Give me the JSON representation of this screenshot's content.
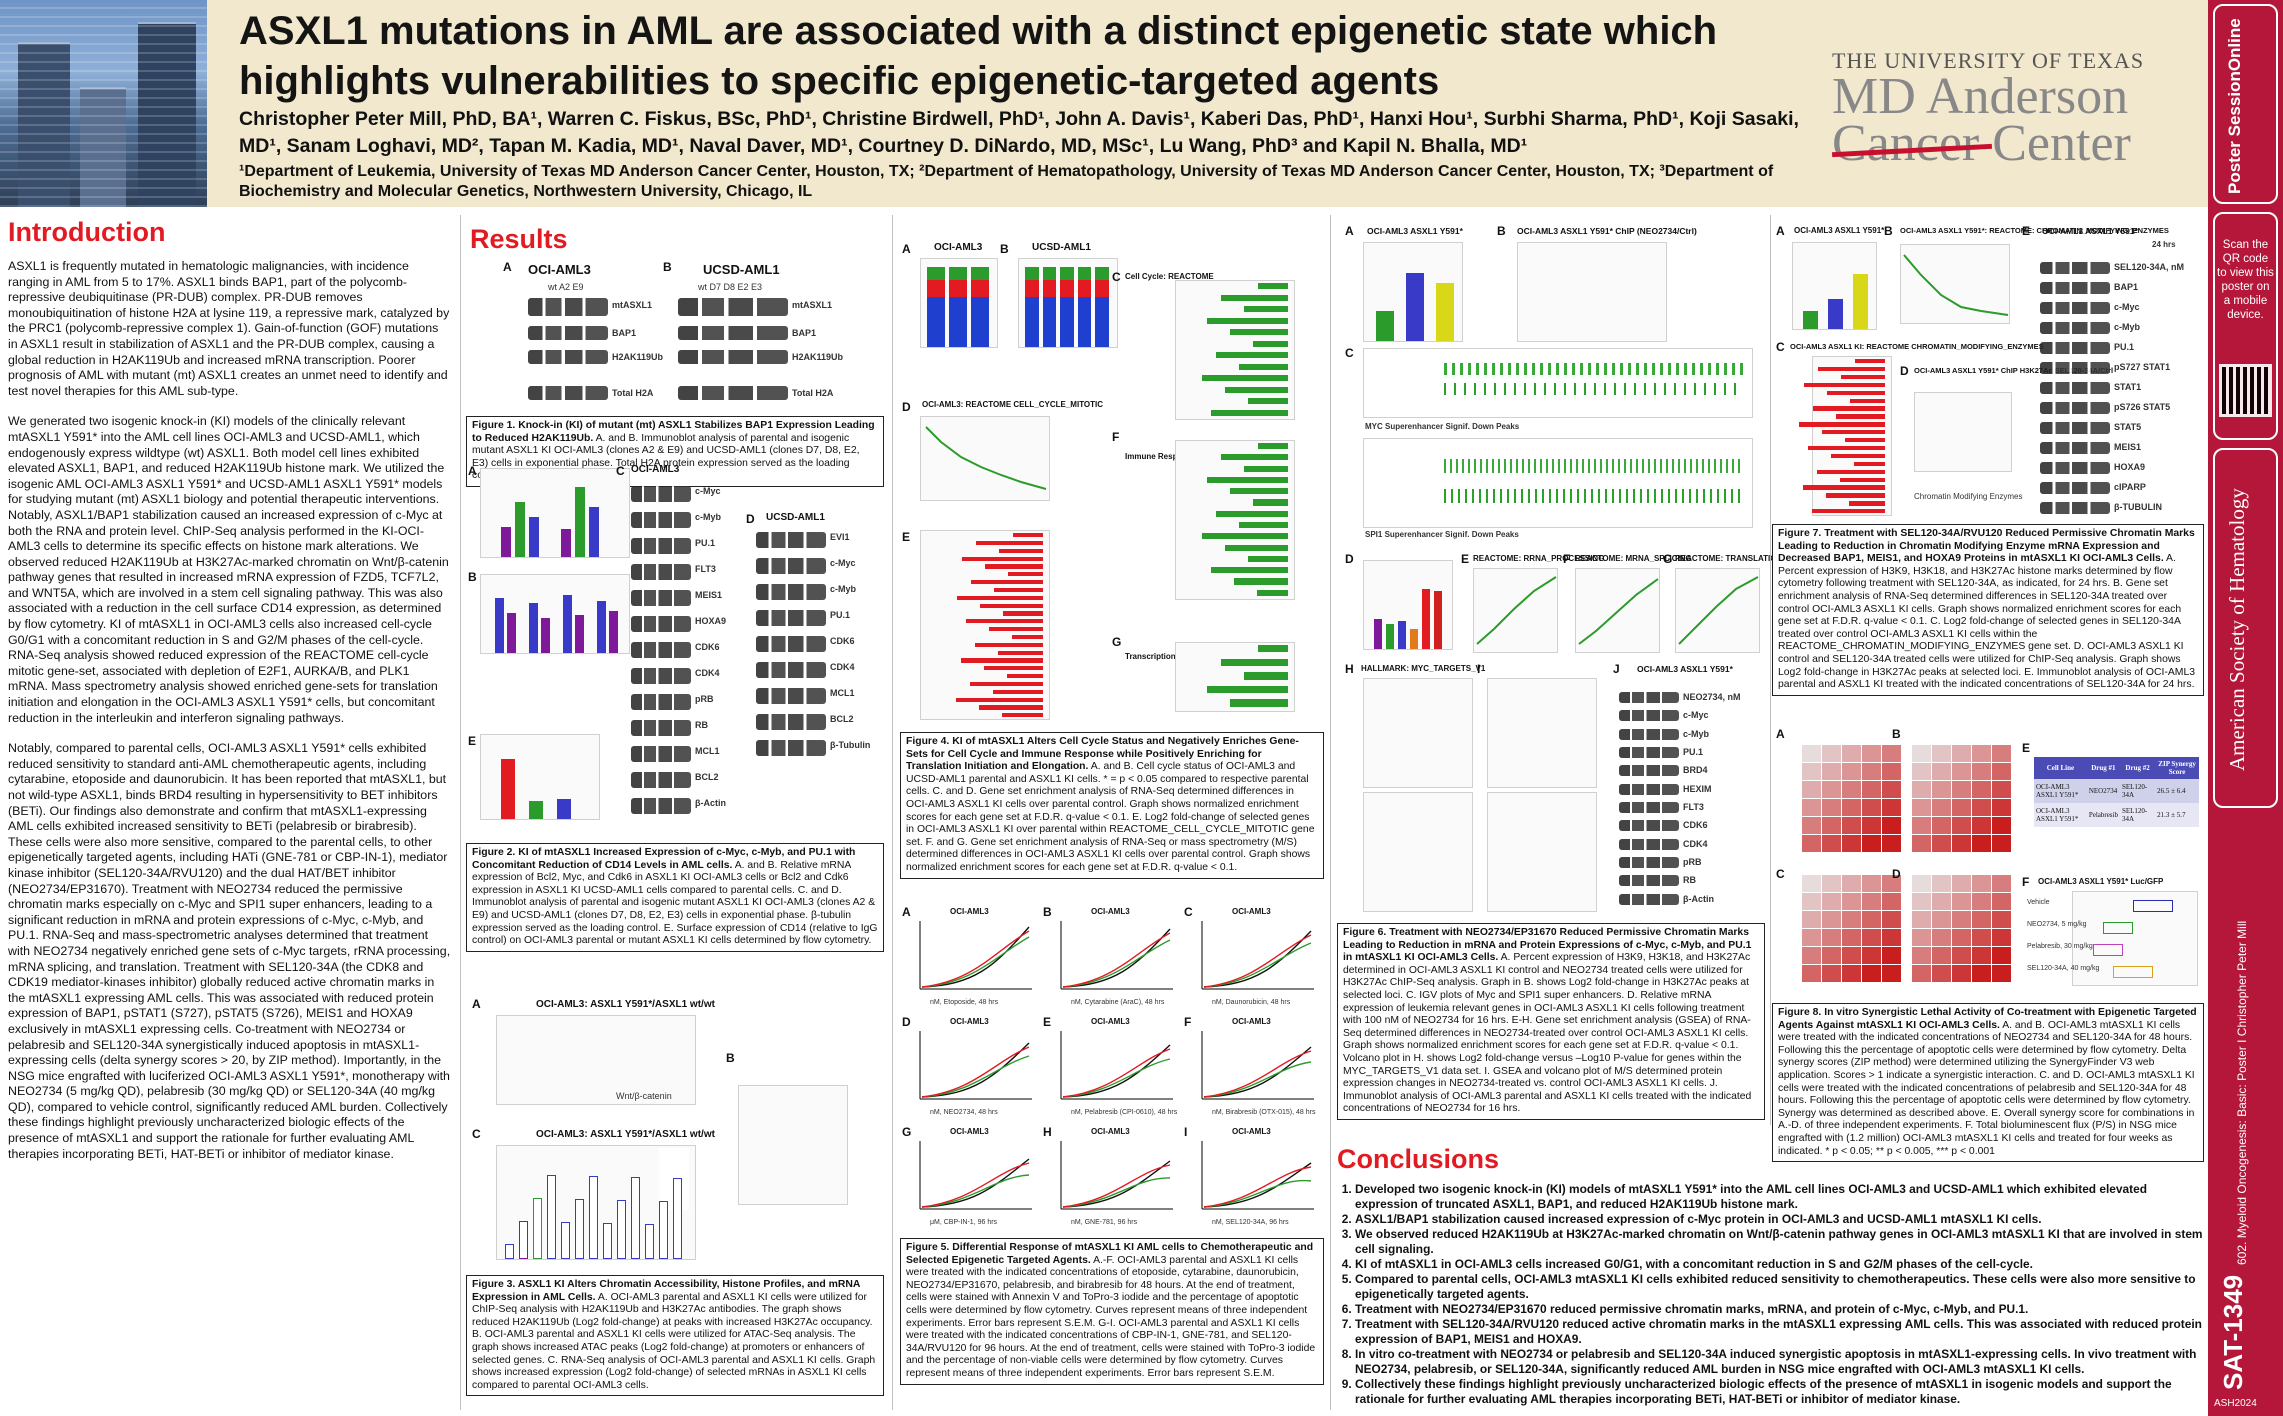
{
  "header": {
    "title": "ASXL1 mutations in AML are associated with a distinct epigenetic state which highlights vulnerabilities to specific epigenetic-targeted agents",
    "authors": "Christopher Peter Mill, PhD, BA¹, Warren C. Fiskus, BSc, PhD¹, Christine Birdwell, PhD¹, John A. Davis¹, Kaberi Das, PhD¹, Hanxi Hou¹, Surbhi Sharma, PhD¹, Koji Sasaki, MD¹, Sanam Loghavi, MD², Tapan M. Kadia, MD¹, Naval Daver, MD¹, Courtney D. DiNardo, MD, MSc¹, Lu Wang, PhD³ and Kapil N. Bhalla, MD¹",
    "affiliations": "¹Department of Leukemia, University of Texas MD Anderson Cancer Center, Houston, TX; ²Department of Hematopathology, University of Texas MD Anderson Cancer Center, Houston, TX; ³Department of Biochemistry and Molecular Genetics, Northwestern University, Chicago, IL",
    "logo_university": "THE UNIVERSITY OF TEXAS",
    "logo_line1": "MD Anderson",
    "logo_line2": "Cancer Center"
  },
  "sidebar": {
    "poster_session": "Poster SessionOnline",
    "qr_note": "Scan the QR code to view this poster on a mobile device.",
    "society": "American Society of Hematology",
    "session": "602. Myeloid Oncogenesis: Basic: Poster I   Christopher Peter Mill",
    "abstract_id": "SAT-1349",
    "code": "ASH2024"
  },
  "introduction": {
    "heading": "Introduction",
    "paragraphs": [
      "ASXL1 is frequently mutated in hematologic malignancies, with incidence ranging in AML from 5 to 17%. ASXL1 binds BAP1, part of the polycomb-repressive deubiquitinase (PR-DUB) complex. PR-DUB removes monoubiquitination of histone H2A at lysine 119, a repressive mark, catalyzed by the PRC1 (polycomb-repressive complex 1). Gain-of-function (GOF) mutations in ASXL1 result in stabilization of ASXL1 and the PR-DUB complex, causing a global reduction in H2AK119Ub and increased mRNA transcription. Poorer prognosis of AML with mutant (mt) ASXL1 creates an unmet need to identify and test novel therapies for this AML sub-type.",
      "We generated two isogenic knock-in (KI) models of the clinically relevant mtASXL1 Y591* into the AML cell lines OCI-AML3 and UCSD-AML1, which endogenously express wildtype (wt) ASXL1. Both model cell lines exhibited elevated ASXL1, BAP1, and reduced H2AK119Ub histone mark. We utilized the isogenic AML OCI-AML3 ASXL1 Y591* and UCSD-AML1 ASXL1 Y591* models for studying mutant (mt) ASXL1 biology and potential therapeutic interventions. Notably, ASXL1/BAP1 stabilization caused an increased expression of c-Myc at both the RNA and protein level. ChIP-Seq analysis performed in the KI-OCI-AML3 cells to determine its specific effects on histone mark alterations. We observed reduced H2AK119Ub at H3K27Ac-marked chromatin on Wnt/β-catenin pathway genes that resulted in increased mRNA expression of FZD5, TCF7L2, and WNT5A, which are involved in a stem cell signaling pathway. This was also associated with a reduction in the cell surface CD14 expression, as determined by flow cytometry. KI of mtASXL1 in OCI-AML3 cells also increased cell-cycle G0/G1 with a concomitant reduction in S and G2/M phases of the cell-cycle. RNA-Seq analysis showed reduced expression of the REACTOME cell-cycle mitotic gene-set, associated with depletion of E2F1, AURKA/B, and PLK1 mRNA. Mass spectrometry analysis showed enriched gene-sets for translation initiation and elongation in the OCI-AML3 ASXL1 Y591* cells, but concomitant reduction in the interleukin and interferon signaling pathways.",
      "Notably, compared to parental cells, OCI-AML3 ASXL1 Y591* cells exhibited reduced sensitivity to standard anti-AML chemotherapeutic agents, including cytarabine, etoposide and daunorubicin. It has been reported that mtASXL1, but not wild-type ASXL1, binds BRD4 resulting in hypersensitivity to BET inhibitors (BETi). Our findings also demonstrate and confirm that mtASXL1-expressing AML cells exhibited increased sensitivity to BETi (pelabresib or birabresib). These cells were also more sensitive, compared to the parental cells, to other epigenetically targeted agents, including HATi (GNE-781 or CBP-IN-1), mediator kinase inhibitor (SEL120-34A/RVU120) and the dual HAT/BET inhibitor (NEO2734/EP31670). Treatment with NEO2734 reduced the permissive chromatin marks especially on c-Myc and SPI1 super enhancers, leading to a significant reduction in mRNA and protein expressions of c-Myc, c-Myb, and PU.1. RNA-Seq and mass-spectrometric analyses determined that treatment with NEO2734 negatively enriched gene sets of c-Myc targets, rRNA processing, mRNA splicing, and translation. Treatment with SEL120-34A (the CDK8 and CDK19 mediator-kinases inhibitor) globally reduced active chromatin marks in the mtASXL1 expressing AML cells. This was associated with reduced protein expression of BAP1, pSTAT1 (S727), pSTAT5 (S726), MEIS1 and HOXA9 exclusively in mtASXL1 expressing cells. Co-treatment with NEO2734 or pelabresib and SEL120-34A synergistically induced apoptosis in mtASXL1-expressing cells (delta synergy scores > 20, by ZIP method). Importantly, in the NSG mice engrafted with luciferized OCI-AML3 ASXL1 Y591*, monotherapy with NEO2734 (5 mg/kg QD), pelabresib (30 mg/kg QD) or SEL120-34A (40 mg/kg QD), compared to vehicle control, significantly reduced AML burden. Collectively these findings highlight previously uncharacterized biologic effects of the presence of mtASXL1 and support the rationale for further evaluating AML therapies incorporating BETi, HAT-BETi or inhibitor of mediator kinase."
    ]
  },
  "results": {
    "heading": "Results",
    "fig1": {
      "panel_a": "A",
      "panel_b": "B",
      "cell_a": "OCI-AML3",
      "cell_b": "UCSD-AML1",
      "lanes_a": "wt  A2  E9",
      "lanes_b": "wt  D7  D8  E2  E3",
      "rows": [
        "mtASXL1",
        "BAP1",
        "H2AK119Ub",
        "Total H2A"
      ],
      "caption_title": "Figure 1. Knock-in (KI) of mutant (mt) ASXL1 Stabilizes BAP1 Expression Leading to Reduced H2AK119Ub.",
      "caption_body": " A. and B. Immunoblot analysis of parental and isogenic mutant ASXL1 KI OCI-AML3 (clones A2 & E9) and UCSD-AML1 (clones D7, D8, E2, E3) cells in exponential phase. Total H2A protein expression served as the loading control."
    },
    "fig2": {
      "rows_c": [
        "c-Myc",
        "c-Myb",
        "PU.1",
        "FLT3",
        "MEIS1",
        "HOXA9",
        "CDK6",
        "CDK4",
        "pRB",
        "RB",
        "MCL1",
        "BCL2",
        "β-Actin"
      ],
      "rows_d": [
        "EVI1",
        "c-Myc",
        "c-Myb",
        "PU.1",
        "CDK6",
        "CDK4",
        "MCL1",
        "BCL2",
        "β-Tubulin"
      ],
      "cell_c": "OCI-AML3",
      "cell_d": "UCSD-AML1",
      "caption_title": "Figure 2. KI of mtASXL1 Increased Expression of c-Myc, c-Myb, and PU.1 with Concomitant Reduction of CD14 Levels in AML cells.",
      "caption_body": " A. and B. Relative mRNA expression of Bcl2, Myc, and Cdk6 in ASXL1 KI OCI-AML3 cells or Bcl2 and Cdk6 expression in ASXL1 KI UCSD-AML1 cells compared to parental cells. C. and D. Immunoblot analysis of parental and isogenic mutant ASXL1 KI OCI-AML3 (clones A2 & E9) and UCSD-AML1 (clones D7, D8, E2, E3) cells in exponential phase. β-tubulin expression served as the loading control. E. Surface expression of CD14 (relative to IgG control) on OCI-AML3 parental or mutant ASXL1 KI cells determined by flow cytometry."
    },
    "fig3": {
      "title_a": "OCI-AML3: ASXL1 Y591*/ASXL1 wt/wt",
      "title_c": "OCI-AML3: ASXL1 Y591*/ASXL1 wt/wt",
      "label_wnt": "Wnt/β-catenin",
      "caption_title": "Figure 3. ASXL1 KI Alters Chromatin Accessibility, Histone Profiles, and mRNA Expression in AML Cells.",
      "caption_body": " A. OCI-AML3 parental and ASXL1 KI cells were utilized for ChIP-Seq analysis with H2AK119Ub and H3K27Ac antibodies. The graph shows reduced H2AK119Ub (Log2 fold-change) at peaks with increased H3K27Ac occupancy. B. OCI-AML3 parental and ASXL1 KI cells were utilized for ATAC-Seq analysis. The graph shows increased ATAC peaks (Log2 fold-change) at promoters or enhancers of selected genes. C. RNA-Seq analysis of OCI-AML3 parental and ASXL1 KI cells. Graph shows increased expression (Log2 fold-change) of selected mRNAs in ASXL1 KI cells compared to parental OCI-AML3 cells."
    },
    "fig4": {
      "title_a": "OCI-AML3",
      "title_b": "UCSD-AML1",
      "title_c": "Cell Cycle: REACTOME",
      "title_d": "OCI-AML3: REACTOME CELL_CYCLE_MITOTIC",
      "title_f": "Immune Response: REACTOME",
      "title_g": "Transcription/Translation: REACTOME",
      "caption_title": "Figure 4. KI of mtASXL1 Alters Cell Cycle Status and Negatively Enriches Gene-Sets for Cell Cycle and Immune Response while Positively Enriching for Translation Initiation and Elongation.",
      "caption_body": " A. and B. Cell cycle status of OCI-AML3 and UCSD-AML1 parental and ASXL1 KI cells. * = p < 0.05 compared to respective parental cells. C. and D. Gene set enrichment analysis of RNA-Seq determined differences in OCI-AML3 ASXL1 KI cells over parental control. Graph shows normalized enrichment scores for each gene set at F.D.R. q-value < 0.1. E. Log2 fold-change of selected genes in OCI-AML3 ASXL1 KI over parental within REACTOME_CELL_CYCLE_MITOTIC gene set. F. and G. Gene set enrichment analysis of RNA-Seq or mass spectrometry (M/S) determined differences in OCI-AML3 ASXL1 KI cells over parental control. Graph shows normalized enrichment scores for each gene set at F.D.R. q-value < 0.1."
    },
    "fig5": {
      "panel_titles": [
        "OCI-AML3",
        "OCI-AML3",
        "OCI-AML3",
        "OCI-AML3",
        "OCI-AML3",
        "OCI-AML3",
        "OCI-AML3",
        "OCI-AML3",
        "OCI-AML3"
      ],
      "x_labels": [
        "nM, Etoposide, 48 hrs",
        "nM, Cytarabine (AraC), 48 hrs",
        "nM, Daunorubicin, 48 hrs",
        "nM, NEO2734, 48 hrs",
        "nM, Pelabresib (CPI-0610), 48 hrs",
        "nM, Birabresib (OTX-015), 48 hrs",
        "μM, CBP-IN-1, 96 hrs",
        "nM, GNE-781, 96 hrs",
        "nM, SEL120-34A, 96 hrs"
      ],
      "caption_title": "Figure 5. Differential Response of mtASXL1 KI AML cells to Chemotherapeutic and Selected Epigenetic Targeted Agents.",
      "caption_body": " A.-F. OCI-AML3 parental and ASXL1 KI cells were treated with the indicated concentrations of etoposide, cytarabine, daunorubicin, NEO2734/EP31670, pelabresib, and birabresib for 48 hours. At the end of treatment, cells were stained with Annexin V and ToPro-3 iodide and the percentage of apoptotic cells were determined by flow cytometry. Curves represent means of three independent experiments. Error bars represent S.E.M. G-I. OCI-AML3 parental and ASXL1 KI cells were treated with the indicated concentrations of CBP-IN-1, GNE-781, and SEL120-34A/RVU120 for 96 hours. At the end of treatment, cells were stained with ToPro-3 iodide and the percentage of non-viable cells were determined by flow cytometry. Curves represent means of three independent experiments. Error bars represent S.E.M."
    },
    "fig6": {
      "title_a": "OCI-AML3 ASXL1 Y591*",
      "title_b": "OCI-AML3 ASXL1 Y591* ChIP (NEO2734/Ctrl)",
      "track_myc": "MYC Superenhancer Signif. Down Peaks",
      "track_spi1": "SPI1 Superenhancer Signif. Down Peaks",
      "title_e": "REACTOME: RRNA_PROCESSING",
      "title_f": "REACTOME: MRNA_SPLICING",
      "title_g": "REACTOME: TRANSLATION",
      "title_h": "HALLMARK: MYC_TARGETS_V1",
      "title_j": "OCI-AML3 ASXL1 Y591*",
      "rows_j": [
        "NEO2734, nM",
        "c-Myc",
        "c-Myb",
        "PU.1",
        "BRD4",
        "HEXIM",
        "FLT3",
        "CDK6",
        "CDK4",
        "pRB",
        "RB",
        "β-Actin"
      ],
      "caption_title": "Figure 6. Treatment with NEO2734/EP31670 Reduced Permissive Chromatin Marks Leading to Reduction in mRNA and Protein Expressions of c-Myc, c-Myb, and PU.1 in mtASXL1 KI OCI-AML3 Cells.",
      "caption_body": " A. Percent expression of H3K9, H3K18, and H3K27Ac determined in OCI-AML3 ASXL1 KI control and NEO2734 treated cells were utilized for H3K27Ac ChIP-Seq analysis. Graph in B. shows Log2 fold-change in H3K27Ac peaks at selected loci. C. IGV plots of Myc and SPI1 super enhancers. D. Relative mRNA expression of leukemia relevant genes in OCI-AML3 ASXL1 KI cells following treatment with 100 nM of NEO2734 for 16 hrs. E-H. Gene set enrichment analysis (GSEA) of RNA-Seq determined differences in NEO2734-treated over control OCI-AML3 ASXL1 KI cells. Graph shows normalized enrichment scores for each gene set at F.D.R. q-value < 0.1. Volcano plot in H. shows Log2 fold-change versus –Log10 P-value for genes within the MYC_TARGETS_V1 data set. I. GSEA and volcano plot of M/S determined protein expression changes in NEO2734-treated vs. control OCI-AML3 ASXL1 KI cells. J. Immunoblot analysis of OCI-AML3 parental and ASXL1 KI cells treated with the indicated concentrations of NEO2734 for 16 hrs."
    },
    "fig7": {
      "title_a": "OCI-AML3 ASXL1 Y591*",
      "title_b": "OCI-AML3 ASXL1 Y591*: REACTOME: CHROMATIN_MODIFYING_ENZYMES",
      "title_c": "OCI-AML3 ASXL1 KI: REACTOME CHROMATIN_MODIFYING_ENZYMES",
      "title_d": "OCI-AML3 ASXL1 Y591* ChIP H3K27Ac SEL120-34A/Ctrl",
      "d_axis": "Chromatin Modifying Enzymes",
      "title_e": "OCI-AML3 ASXL1 Y591*",
      "e_time": "24 hrs",
      "rows_e": [
        "SEL120-34A, nM",
        "BAP1",
        "c-Myc",
        "c-Myb",
        "PU.1",
        "pS727 STAT1",
        "STAT1",
        "pS726 STAT5",
        "STAT5",
        "MEIS1",
        "HOXA9",
        "cIPARP",
        "β-TUBULIN"
      ],
      "caption_title": "Figure 7. Treatment with SEL120-34A/RVU120 Reduced Permissive Chromatin Marks Leading to Reduction in Chromatin Modifying Enzyme mRNA Expression and Decreased BAP1, MEIS1, and HOXA9 Proteins in mtASXL1 KI OCI-AML3 Cells.",
      "caption_body": " A. Percent expression of H3K9, H3K18, and H3K27Ac histone marks determined by flow cytometry following treatment with SEL120-34A, as indicated, for 24 hrs. B. Gene set enrichment analysis of RNA-Seq determined differences in SEL120-34A treated over control OCI-AML3 ASXL1 KI cells. Graph shows normalized enrichment scores for each gene set at F.D.R. q-value < 0.1. C. Log2 fold-change of selected genes in SEL120-34A treated over control OCI-AML3 ASXL1 KI cells within the REACTOME_CHROMATIN_MODIFYING_ENZYMES gene set. D. OCI-AML3 ASXL1 KI control and SEL120-34A treated cells were utilized for ChIP-Seq analysis. Graph shows Log2 fold-change in H3K27Ac peaks at selected loci. E. Immunoblot analysis of OCI-AML3 parental and ASXL1 KI treated with the indicated concentrations of SEL120-34A for 24 hrs."
    },
    "fig8": {
      "table_headers": [
        "Cell Line",
        "Drug #1",
        "Drug #2",
        "ZIP Synergy Score"
      ],
      "table_rows": [
        [
          "OCI-AML3 ASXL1 Y591*",
          "NEO2734",
          "SEL120-34A",
          "26.5 ± 6.4"
        ],
        [
          "OCI-AML3 ASXL1 Y591*",
          "Pelabresib",
          "SEL120-34A",
          "21.3 ± 5.7"
        ]
      ],
      "title_f": "OCI-AML3 ASXL1 Y591* Luc/GFP",
      "f_treatments": [
        "Vehicle",
        "NEO2734, 5 mg/kg",
        "Pelabresib, 30 mg/kg",
        "SEL120-34A, 40 mg/kg"
      ],
      "caption_title": "Figure 8. In vitro Synergistic Lethal Activity of Co-treatment with Epigenetic Targeted Agents Against mtASXL1 KI OCI-AML3 Cells.",
      "caption_body": " A. and B. OCI-AML3 mtASXL1 KI cells were treated with the indicated concentrations of NEO2734 and SEL120-34A for 48 hours. Following this the percentage of apoptotic cells were determined by flow cytometry. Delta synergy scores (ZIP method) were determined utilizing the SynergyFinder V3 web application. Scores > 1 indicate a synergistic interaction. C. and D. OCI-AML3 mtASXL1 KI cells were treated with the indicated concentrations of pelabresib and SEL120-34A for 48 hours. Following this the percentage of apoptotic cells were determined by flow cytometry. Synergy was determined as described above. E. Overall synergy score for combinations in A.-D. of three independent experiments. F. Total bioluminescent flux (P/S) in NSG mice engrafted with (1.2 million) OCI-AML3 mtASXL1 KI cells and treated for four weeks as indicated. * p < 0.05; ** p < 0.005, *** p < 0.001"
    }
  },
  "conclusions": {
    "heading": "Conclusions",
    "items": [
      "Developed two isogenic knock-in (KI) models of mtASXL1 Y591* into the AML cell lines OCI-AML3 and UCSD-AML1 which exhibited elevated expression of truncated ASXL1, BAP1, and reduced H2AK119Ub histone mark.",
      "ASXL1/BAP1 stabilization caused increased expression of c-Myc protein in OCI-AML3 and UCSD-AML1 mtASXL1 KI cells.",
      "We observed reduced H2AK119Ub at H3K27Ac-marked chromatin on Wnt/β-catenin pathway genes in OCI-AML3 mtASXL1 KI that are involved in stem cell signaling.",
      "KI of mtASXL1 in OCI-AML3 cells increased G0/G1, with a concomitant reduction in S and G2/M phases of the cell-cycle.",
      "Compared to parental cells, OCI-AML3 mtASXL1 KI cells exhibited reduced sensitivity to chemotherapeutics. These cells were also more sensitive to epigenetically targeted agents.",
      "Treatment with NEO2734/EP31670 reduced permissive chromatin marks, mRNA, and protein of c-Myc, c-Myb, and PU.1.",
      "Treatment with SEL120-34A/RVU120 reduced active chromatin marks in the mtASXL1 expressing AML cells. This was associated with reduced protein expression of BAP1, MEIS1 and HOXA9.",
      "In vitro co-treatment with NEO2734 or pelabresib and SEL120-34A induced synergistic apoptosis in mtASXL1-expressing cells. In vivo treatment with NEO2734, pelabresib, or SEL120-34A, significantly reduced AML burden in NSG mice engrafted with OCI-AML3 mtASXL1 KI cells.",
      "Collectively these findings highlight previously uncharacterized biologic effects of the presence of mtASXL1 in isogenic models and support the rationale for further evaluating AML therapies incorporating BETi, HAT-BETi or inhibitor of mediator kinase."
    ]
  },
  "colors": {
    "accent_red": "#e21b23",
    "header_bg": "#f1e8cd",
    "strip_red": "#b5173a"
  }
}
